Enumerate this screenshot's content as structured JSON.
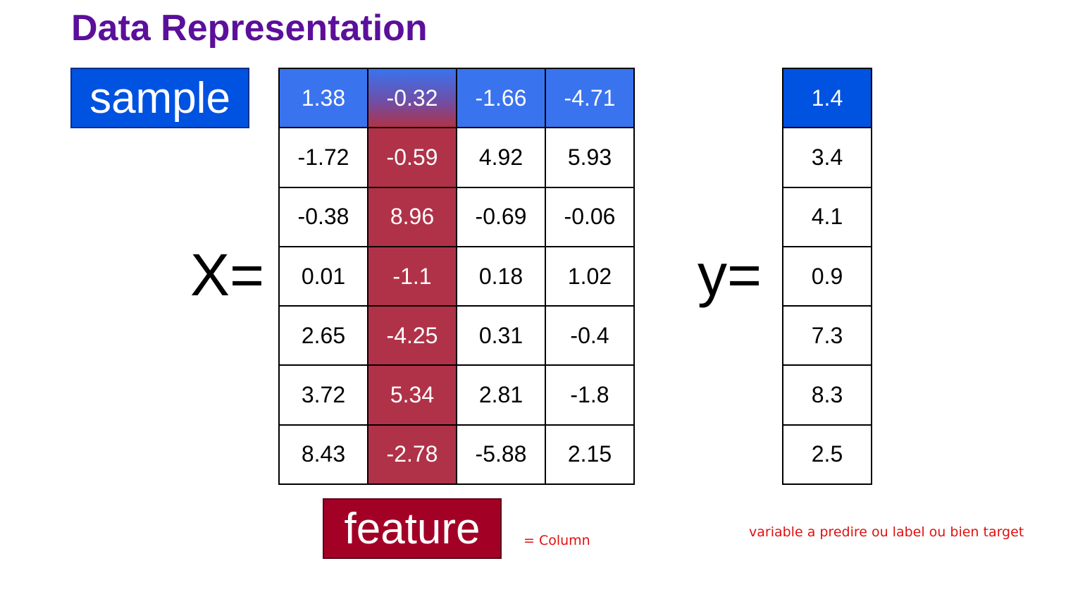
{
  "title": "Data Representation",
  "sample_label": "sample",
  "feature_label": "feature",
  "x_label": "X=",
  "y_label": "y=",
  "column_note": "= Column",
  "target_note": "variable a predire ou label ou bien target",
  "highlighted_feature_column": 1,
  "highlighted_sample_row": 0,
  "colors": {
    "title": "#5b0f9a",
    "sample": "#0052e0",
    "sample_row": "#3a73ee",
    "feature": "#a30026",
    "feature_column": "#b03248",
    "note": "#e01010"
  },
  "X": [
    [
      "1.38",
      "-0.32",
      "-1.66",
      "-4.71"
    ],
    [
      "-1.72",
      "-0.59",
      "4.92",
      "5.93"
    ],
    [
      "-0.38",
      "8.96",
      "-0.69",
      "-0.06"
    ],
    [
      "0.01",
      "-1.1",
      "0.18",
      "1.02"
    ],
    [
      "2.65",
      "-4.25",
      "0.31",
      "-0.4"
    ],
    [
      "3.72",
      "5.34",
      "2.81",
      "-1.8"
    ],
    [
      "8.43",
      "-2.78",
      "-5.88",
      "2.15"
    ]
  ],
  "y": [
    "1.4",
    "3.4",
    "4.1",
    "0.9",
    "7.3",
    "8.3",
    "2.5"
  ]
}
